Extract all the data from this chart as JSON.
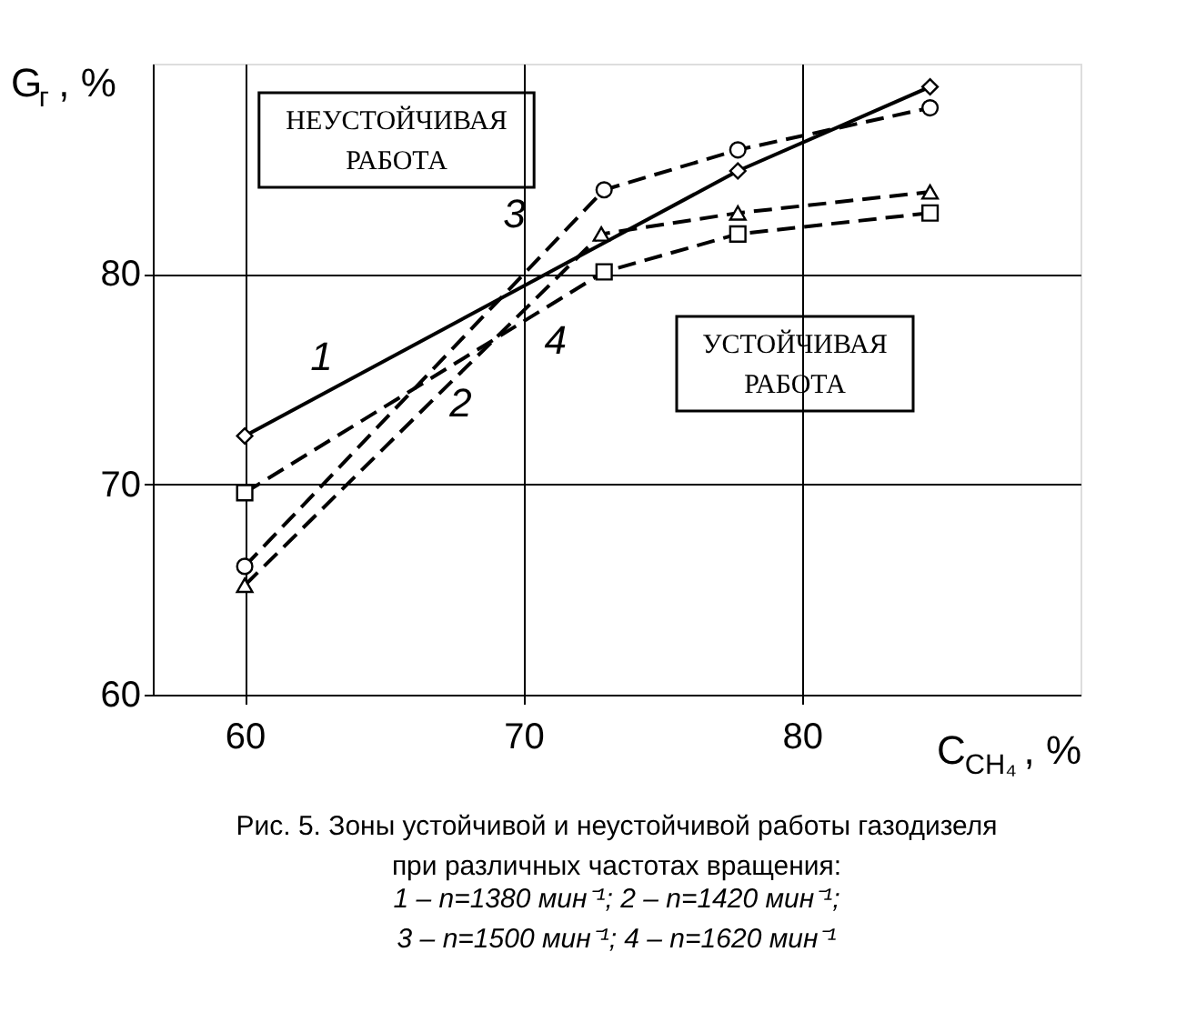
{
  "chart_data": {
    "type": "line",
    "title": "Рис. 5. Зоны устойчивой и неустойчивой работы газодизеля при различных частотах вращения:",
    "subtitle": "1 – n=1380 мин⁻¹; 2 – n=1420 мин⁻¹; 3 – n=1500 мин⁻¹; 4 – n=1620 мин⁻¹",
    "xlabel": "C$_{CH₄}$, %",
    "ylabel": "G$_{г}$, %",
    "xlim": [
      56.7,
      90
    ],
    "ylim": [
      60,
      90
    ],
    "xticks": [
      60,
      70,
      80
    ],
    "yticks": [
      60,
      70,
      80
    ],
    "grid": true,
    "series": [
      {
        "name": "1",
        "color": "#000000",
        "marker": "diamond",
        "line_style": "solid",
        "x": [
          60,
          77.7,
          84.6
        ],
        "values": [
          72.3,
          84.9,
          88.9
        ]
      },
      {
        "name": "2",
        "color": "#000000",
        "marker": "square",
        "line_style": "dashed",
        "x": [
          60,
          72.9,
          77.7,
          84.6
        ],
        "values": [
          69.6,
          80.1,
          81.9,
          82.9
        ]
      },
      {
        "name": "3",
        "color": "#000000",
        "marker": "circle",
        "line_style": "dashed",
        "x": [
          60,
          72.9,
          77.7,
          84.6
        ],
        "values": [
          66.1,
          84.0,
          85.9,
          87.9
        ]
      },
      {
        "name": "4",
        "color": "#000000",
        "marker": "triangle",
        "line_style": "dashed",
        "x": [
          60,
          72.8,
          77.7,
          84.6
        ],
        "values": [
          65.2,
          81.9,
          82.9,
          83.9
        ]
      }
    ],
    "annotations": [
      "НЕУСТОЙЧИВАЯ РАБОТА",
      "УСТОЙЧИВАЯ РАБОТА"
    ]
  }
}
